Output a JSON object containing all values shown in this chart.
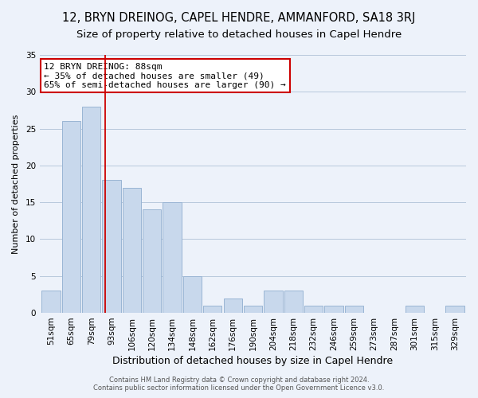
{
  "title": "12, BRYN DREINOG, CAPEL HENDRE, AMMANFORD, SA18 3RJ",
  "subtitle": "Size of property relative to detached houses in Capel Hendre",
  "xlabel": "Distribution of detached houses by size in Capel Hendre",
  "ylabel": "Number of detached properties",
  "bar_labels": [
    "51sqm",
    "65sqm",
    "79sqm",
    "93sqm",
    "106sqm",
    "120sqm",
    "134sqm",
    "148sqm",
    "162sqm",
    "176sqm",
    "190sqm",
    "204sqm",
    "218sqm",
    "232sqm",
    "246sqm",
    "259sqm",
    "273sqm",
    "287sqm",
    "301sqm",
    "315sqm",
    "329sqm"
  ],
  "bar_values": [
    3,
    26,
    28,
    18,
    17,
    14,
    15,
    5,
    1,
    2,
    1,
    3,
    3,
    1,
    1,
    1,
    0,
    0,
    1,
    0,
    1
  ],
  "bar_color": "#c8d8ec",
  "bar_edge_color": "#9ab5d4",
  "grid_color": "#b8c8dc",
  "property_line_x": 2.67,
  "annotation_text_line1": "12 BRYN DREINOG: 88sqm",
  "annotation_text_line2": "← 35% of detached houses are smaller (49)",
  "annotation_text_line3": "65% of semi-detached houses are larger (90) →",
  "annotation_box_facecolor": "#ffffff",
  "annotation_box_edgecolor": "#cc0000",
  "property_line_color": "#cc0000",
  "ylim": [
    0,
    35
  ],
  "yticks": [
    0,
    5,
    10,
    15,
    20,
    25,
    30,
    35
  ],
  "footer_line1": "Contains HM Land Registry data © Crown copyright and database right 2024.",
  "footer_line2": "Contains public sector information licensed under the Open Government Licence v3.0.",
  "background_color": "#edf2fa",
  "title_fontsize": 10.5,
  "subtitle_fontsize": 9.5,
  "xlabel_fontsize": 9,
  "ylabel_fontsize": 8,
  "tick_fontsize": 7.5,
  "annotation_fontsize": 8,
  "footer_fontsize": 6
}
